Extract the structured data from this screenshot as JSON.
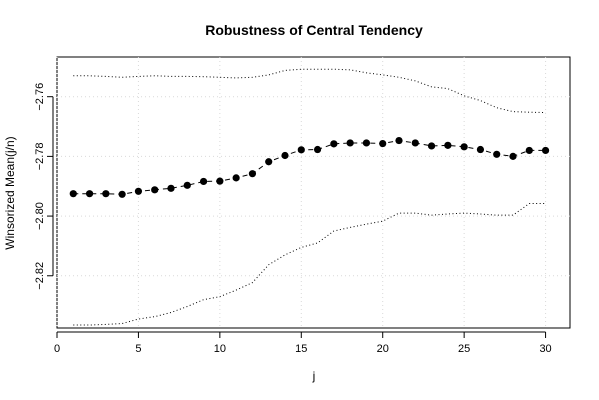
{
  "chart_data": {
    "type": "line",
    "title": "Robustness of Central Tendency",
    "xlabel": "j",
    "ylabel": "Winsorized Mean(j/n)",
    "xlim": [
      0,
      31.5
    ],
    "ylim": [
      -2.8375,
      -2.7467
    ],
    "x_ticks": [
      0,
      5,
      10,
      15,
      20,
      25,
      30
    ],
    "y_ticks": [
      -2.76,
      -2.78,
      -2.8,
      -2.82
    ],
    "y_tick_labels": [
      "−2.76",
      "−2.78",
      "−2.80",
      "−2.82"
    ],
    "grid": true,
    "x": [
      1,
      2,
      3,
      4,
      5,
      6,
      7,
      8,
      9,
      10,
      11,
      12,
      13,
      14,
      15,
      16,
      17,
      18,
      19,
      20,
      21,
      22,
      23,
      24,
      25,
      26,
      27,
      28,
      29,
      30
    ],
    "series": [
      {
        "style": "points-dashed",
        "values": [
          -2.7925,
          -2.7925,
          -2.7925,
          -2.7927,
          -2.7917,
          -2.7912,
          -2.7907,
          -2.7897,
          -2.7884,
          -2.7883,
          -2.7872,
          -2.7858,
          -2.7818,
          -2.7797,
          -2.7778,
          -2.7777,
          -2.7758,
          -2.7755,
          -2.7755,
          -2.7757,
          -2.7747,
          -2.7755,
          -2.7765,
          -2.7763,
          -2.7768,
          -2.7777,
          -2.7793,
          -2.78,
          -2.778,
          -2.778
        ]
      },
      {
        "style": "dotted-upper",
        "values": [
          -2.753,
          -2.753,
          -2.7532,
          -2.7535,
          -2.7532,
          -2.753,
          -2.7532,
          -2.7532,
          -2.7533,
          -2.7535,
          -2.7537,
          -2.7535,
          -2.7527,
          -2.7512,
          -2.7508,
          -2.7508,
          -2.7508,
          -2.751,
          -2.752,
          -2.7527,
          -2.7535,
          -2.7547,
          -2.7567,
          -2.7573,
          -2.7597,
          -2.7613,
          -2.7637,
          -2.765,
          -2.7652,
          -2.7653
        ]
      },
      {
        "style": "dotted-lower",
        "values": [
          -2.8365,
          -2.8365,
          -2.8363,
          -2.836,
          -2.8345,
          -2.8337,
          -2.8323,
          -2.8303,
          -2.828,
          -2.827,
          -2.8248,
          -2.8223,
          -2.8163,
          -2.813,
          -2.8105,
          -2.809,
          -2.805,
          -2.8038,
          -2.8027,
          -2.8017,
          -2.799,
          -2.799,
          -2.7997,
          -2.7993,
          -2.799,
          -2.7993,
          -2.7997,
          -2.7997,
          -2.7958,
          -2.7958
        ]
      }
    ]
  }
}
